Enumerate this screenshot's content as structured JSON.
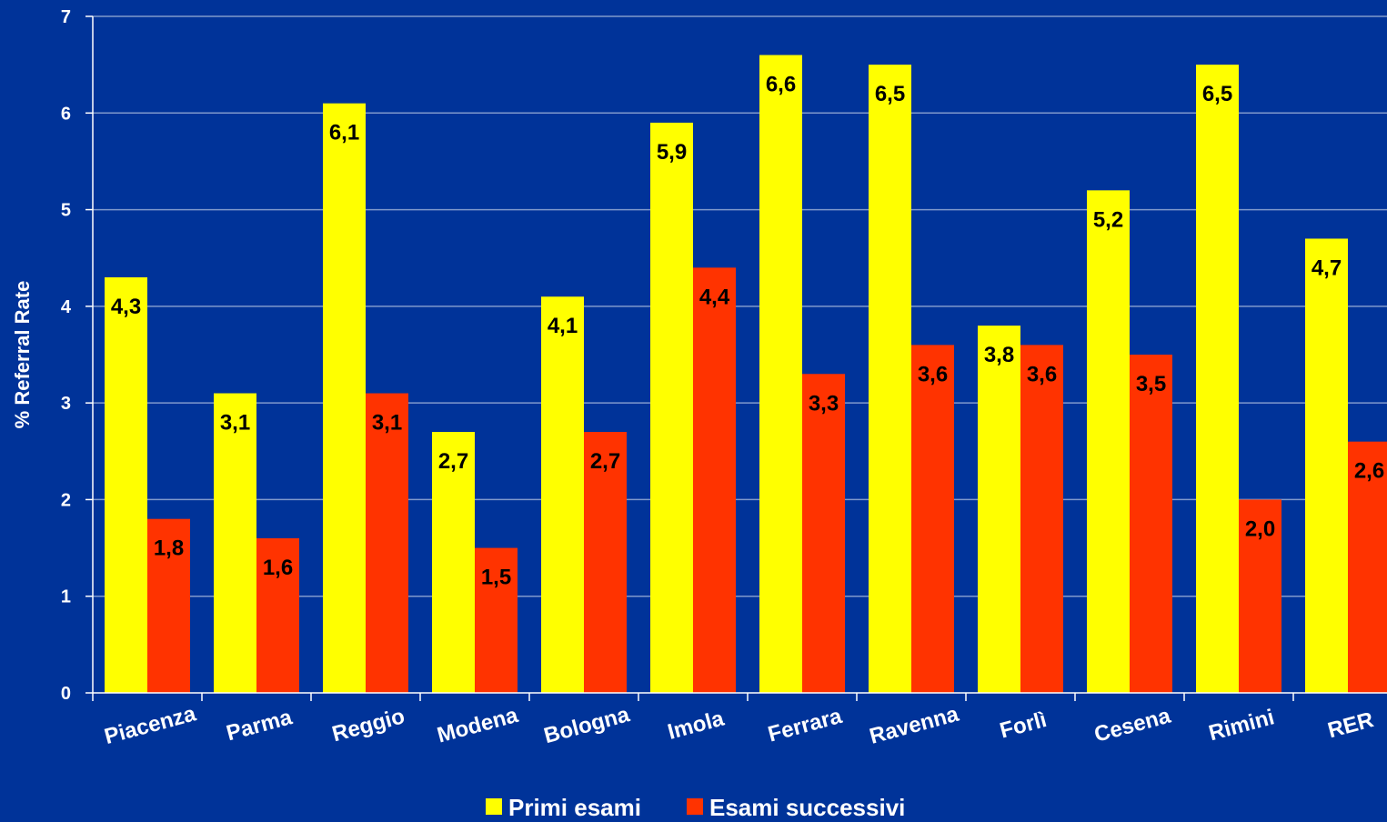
{
  "chart_data": {
    "type": "bar",
    "title": "",
    "xlabel": "",
    "ylabel": "% Referral Rate",
    "ylim": [
      0,
      7
    ],
    "yticks": [
      "0",
      "1",
      "2",
      "3",
      "4",
      "5",
      "6",
      "7"
    ],
    "grid": true,
    "legend_position": "bottom",
    "categories": [
      "Piacenza",
      "Parma",
      "Reggio",
      "Modena",
      "Bologna",
      "Imola",
      "Ferrara",
      "Ravenna",
      "Forlì",
      "Cesena",
      "Rimini",
      "RER"
    ],
    "series": [
      {
        "name": "Primi esami",
        "color": "#ffff00",
        "values": [
          4.3,
          3.1,
          6.1,
          2.7,
          4.1,
          5.9,
          6.6,
          6.5,
          3.8,
          5.2,
          6.5,
          4.7
        ],
        "labels": [
          "4,3",
          "3,1",
          "6,1",
          "2,7",
          "4,1",
          "5,9",
          "6,6",
          "6,5",
          "3,8",
          "5,2",
          "6,5",
          "4,7"
        ]
      },
      {
        "name": "Esami successivi",
        "color": "#ff3300",
        "values": [
          1.8,
          1.6,
          3.1,
          1.5,
          2.7,
          4.4,
          3.3,
          3.6,
          3.6,
          3.5,
          2.0,
          2.6
        ],
        "labels": [
          "1,8",
          "1,6",
          "3,1",
          "1,5",
          "2,7",
          "4,4",
          "3,3",
          "3,6",
          "3,6",
          "3,5",
          "2,0",
          "2,6"
        ]
      }
    ]
  },
  "colors": {
    "background": "#003399",
    "gridline": "#8099cc",
    "axis": "#ffffff"
  }
}
